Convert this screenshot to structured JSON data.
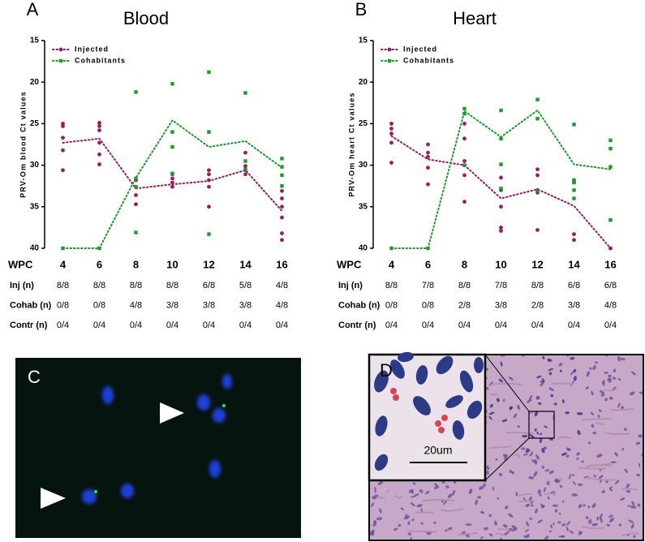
{
  "chart_data": [
    {
      "type": "line",
      "panel": "A",
      "title": "Blood",
      "ylabel": "PRV-Om blood Ct values",
      "xlabel": "WPC",
      "x": [
        4,
        6,
        8,
        10,
        12,
        14,
        16
      ],
      "xlim": [
        3,
        17
      ],
      "xticks": [
        4,
        6,
        8,
        10,
        12,
        14,
        16
      ],
      "ylim": [
        40,
        15
      ],
      "yticks": [
        15,
        20,
        25,
        30,
        35,
        40
      ],
      "legend": "top-left",
      "series": [
        {
          "name": "Injected",
          "color": "#9b1b5f",
          "marker": "circle",
          "values": [
            27.3,
            26.8,
            32.8,
            32.3,
            31.9,
            30.6,
            35.5
          ],
          "points": {
            "x": [
              4,
              4,
              4,
              4,
              4,
              6,
              6,
              6,
              6,
              6,
              6,
              8,
              8,
              8,
              8,
              10,
              10,
              10,
              10,
              12,
              12,
              12,
              12,
              12,
              14,
              14,
              14,
              14,
              16,
              16,
              16,
              16,
              16,
              16
            ],
            "y": [
              25.0,
              25.3,
              26.7,
              28.2,
              30.6,
              24.9,
              25.3,
              25.8,
              27.3,
              28.7,
              29.9,
              31.8,
              32.6,
              33.6,
              34.7,
              31.1,
              31.6,
              32.1,
              32.6,
              30.6,
              31.1,
              31.8,
              32.6,
              35.0,
              28.5,
              30.1,
              30.6,
              31.1,
              33.1,
              34.0,
              35.0,
              36.3,
              38.2,
              39.0
            ]
          }
        },
        {
          "name": "Cohabitants",
          "color": "#1e9a2c",
          "marker": "square",
          "values": [
            40,
            40,
            31.5,
            24.6,
            27.8,
            27.1,
            30.3
          ],
          "points": {
            "x": [
              4,
              6,
              8,
              8,
              8,
              8,
              10,
              10,
              10,
              10,
              12,
              12,
              12,
              14,
              14,
              14,
              16,
              16,
              16,
              16
            ],
            "y": [
              40,
              40,
              21.2,
              31.6,
              32.6,
              38.1,
              20.2,
              26.0,
              27.8,
              31.0,
              18.8,
              26.0,
              38.3,
              21.3,
              29.5,
              30.5,
              29.2,
              30.2,
              31.2,
              32.5
            ]
          }
        }
      ],
      "table": {
        "rows": [
          {
            "label": "Inj (n)",
            "cells": [
              "8/8",
              "8/8",
              "8/8",
              "8/8",
              "6/8",
              "5/8",
              "4/8"
            ]
          },
          {
            "label": "Cohab (n)",
            "cells": [
              "0/8",
              "0/8",
              "4/8",
              "3/8",
              "3/8",
              "3/8",
              "4/8"
            ]
          },
          {
            "label": "Contr (n)",
            "cells": [
              "0/4",
              "0/4",
              "0/4",
              "0/4",
              "0/4",
              "0/4",
              "0/4"
            ]
          }
        ]
      }
    },
    {
      "type": "line",
      "panel": "B",
      "title": "Heart",
      "ylabel": "PRV-Om heart Ct values",
      "xlabel": "WPC",
      "x": [
        4,
        6,
        8,
        10,
        12,
        14,
        16
      ],
      "xlim": [
        3,
        17
      ],
      "xticks": [
        4,
        6,
        8,
        10,
        12,
        14,
        16
      ],
      "ylim": [
        40,
        15
      ],
      "yticks": [
        15,
        20,
        25,
        30,
        35,
        40
      ],
      "legend": "top-left",
      "series": [
        {
          "name": "Injected",
          "color": "#9b1b5f",
          "marker": "circle",
          "values": [
            26.5,
            29.3,
            30.0,
            34.0,
            32.9,
            34.9,
            40
          ],
          "points": {
            "x": [
              4,
              4,
              4,
              4,
              4,
              6,
              6,
              6,
              6,
              6,
              8,
              8,
              8,
              8,
              8,
              8,
              10,
              10,
              10,
              10,
              10,
              12,
              12,
              12,
              12,
              12,
              14,
              14,
              14,
              16
            ],
            "y": [
              25.0,
              25.6,
              26.2,
              27.3,
              29.7,
              27.5,
              28.5,
              29.0,
              30.3,
              32.3,
              25.0,
              26.8,
              29.5,
              30.0,
              31.2,
              34.4,
              31.5,
              33.0,
              35.0,
              37.5,
              37.9,
              30.5,
              31.2,
              33.0,
              33.3,
              37.8,
              32.0,
              38.3,
              39.0,
              40
            ]
          }
        },
        {
          "name": "Cohabitants",
          "color": "#1e9a2c",
          "marker": "square",
          "values": [
            40,
            40,
            23.5,
            26.6,
            23.4,
            29.9,
            30.5
          ],
          "points": {
            "x": [
              4,
              6,
              8,
              8,
              8,
              10,
              10,
              10,
              10,
              12,
              12,
              12,
              14,
              14,
              14,
              14,
              14,
              16,
              16,
              16,
              16
            ],
            "y": [
              40,
              40,
              23.2,
              23.8,
              30.0,
              23.4,
              26.8,
              29.9,
              32.8,
              22.1,
              24.4,
              33.1,
              25.1,
              31.8,
              32.1,
              33.0,
              34.0,
              27.0,
              28.0,
              30.2,
              36.6
            ]
          }
        }
      ],
      "table": {
        "rows": [
          {
            "label": "Inj (n)",
            "cells": [
              "8/8",
              "7/8",
              "8/8",
              "7/8",
              "8/8",
              "6/8",
              "6/8"
            ]
          },
          {
            "label": "Cohab (n)",
            "cells": [
              "0/8",
              "0/8",
              "2/8",
              "3/8",
              "2/8",
              "3/8",
              "4/8"
            ]
          },
          {
            "label": "Contr (n)",
            "cells": [
              "0/4",
              "0/4",
              "0/4",
              "0/4",
              "0/4",
              "0/4",
              "0/4"
            ]
          }
        ]
      }
    }
  ],
  "panels": [
    {
      "label": "C"
    },
    {
      "label": "D",
      "scale_bar": "20um"
    }
  ]
}
